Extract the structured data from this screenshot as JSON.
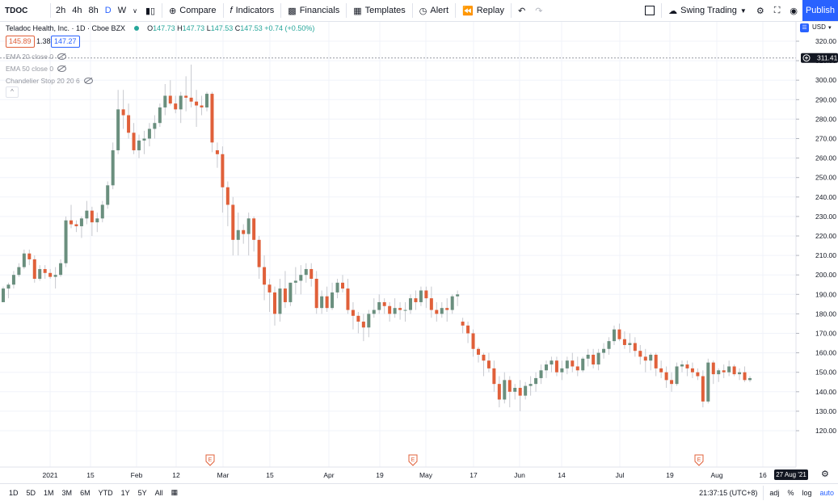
{
  "toolbar": {
    "symbol": "TDOC",
    "intervals": [
      "2h",
      "4h",
      "8h",
      "D",
      "W"
    ],
    "active_interval": "D",
    "compare": "Compare",
    "indicators": "Indicators",
    "financials": "Financials",
    "templates": "Templates",
    "alert": "Alert",
    "replay": "Replay",
    "layout_name": "Swing Trading",
    "publish": "Publish"
  },
  "legend": {
    "title": "Teladoc Health, Inc. · 1D · Cboe BZX",
    "open": "147.73",
    "high": "147.73",
    "low": "147.53",
    "close": "147.53",
    "change": "+0.74 (+0.50%)",
    "bid": "145.89",
    "spread": "1.38",
    "ask": "147.27",
    "indicators": [
      "EMA 20 close 0",
      "EMA 50 close 0",
      "Chandelier Stop 20 20 6"
    ]
  },
  "price_axis": {
    "currency": "USD",
    "crosshair_price": "311.41",
    "ticks": [
      "320.00",
      "310.00",
      "300.00",
      "290.00",
      "280.00",
      "270.00",
      "260.00",
      "250.00",
      "240.00",
      "230.00",
      "220.00",
      "210.00",
      "200.00",
      "190.00",
      "180.00",
      "170.00",
      "160.00",
      "150.00",
      "140.00",
      "130.00",
      "120.00"
    ]
  },
  "time_axis": {
    "labels": [
      "2021",
      "15",
      "Feb",
      "12",
      "Mar",
      "15",
      "Apr",
      "19",
      "May",
      "17",
      "Jun",
      "14",
      "Jul",
      "19",
      "Aug",
      "16"
    ],
    "crosshair_date": "27 Aug '21",
    "earnings_marker": "E"
  },
  "bottom": {
    "ranges": [
      "1D",
      "5D",
      "1M",
      "3M",
      "6M",
      "YTD",
      "1Y",
      "5Y",
      "All"
    ],
    "time": "21:37:15 (UTC+8)",
    "adj": "adj",
    "percent": "%",
    "log": "log",
    "auto": "auto"
  },
  "colors": {
    "up": "#6a8f7e",
    "down": "#e0603a",
    "accent": "#2962ff"
  },
  "chart_data": {
    "type": "candlestick",
    "ylim": [
      112,
      324
    ],
    "yticks": [
      320,
      310,
      300,
      290,
      280,
      270,
      260,
      250,
      240,
      230,
      220,
      210,
      200,
      190,
      180,
      170,
      160,
      150,
      140,
      130,
      120
    ],
    "crosshair_price": 311.41,
    "candles": [
      [
        186,
        194,
        186,
        193
      ],
      [
        193,
        196,
        188,
        195
      ],
      [
        195,
        202,
        193,
        200
      ],
      [
        200,
        206,
        199,
        204
      ],
      [
        204,
        213,
        203,
        211
      ],
      [
        211,
        213,
        205,
        208
      ],
      [
        208,
        210,
        196,
        198
      ],
      [
        198,
        205,
        197,
        203
      ],
      [
        203,
        205,
        198,
        201
      ],
      [
        201,
        203,
        198,
        199
      ],
      [
        199,
        204,
        193,
        200
      ],
      [
        200,
        208,
        199,
        206
      ],
      [
        206,
        230,
        204,
        228
      ],
      [
        228,
        236,
        224,
        226
      ],
      [
        226,
        228,
        222,
        225
      ],
      [
        225,
        230,
        219,
        229
      ],
      [
        229,
        238,
        226,
        233
      ],
      [
        233,
        235,
        220,
        227
      ],
      [
        227,
        232,
        222,
        229
      ],
      [
        229,
        238,
        227,
        236
      ],
      [
        236,
        248,
        234,
        246
      ],
      [
        246,
        268,
        244,
        264
      ],
      [
        264,
        295,
        262,
        285
      ],
      [
        285,
        295,
        275,
        282
      ],
      [
        282,
        288,
        270,
        273
      ],
      [
        273,
        278,
        262,
        264
      ],
      [
        264,
        272,
        260,
        269
      ],
      [
        269,
        274,
        262,
        270
      ],
      [
        270,
        278,
        266,
        275
      ],
      [
        275,
        282,
        270,
        278
      ],
      [
        278,
        288,
        276,
        286
      ],
      [
        286,
        298,
        282,
        292
      ],
      [
        292,
        300,
        287,
        288
      ],
      [
        288,
        292,
        283,
        285
      ],
      [
        285,
        294,
        278,
        292
      ],
      [
        292,
        302,
        284,
        291
      ],
      [
        291,
        308,
        286,
        289
      ],
      [
        289,
        295,
        276,
        287
      ],
      [
        287,
        292,
        282,
        286
      ],
      [
        286,
        294,
        284,
        293
      ],
      [
        293,
        294,
        263,
        268
      ],
      [
        264,
        268,
        255,
        262
      ],
      [
        262,
        266,
        232,
        245
      ],
      [
        245,
        248,
        225,
        236
      ],
      [
        236,
        240,
        210,
        218
      ],
      [
        218,
        232,
        210,
        223
      ],
      [
        223,
        226,
        216,
        221
      ],
      [
        221,
        232,
        210,
        229
      ],
      [
        229,
        230,
        212,
        218
      ],
      [
        218,
        220,
        198,
        204
      ],
      [
        204,
        210,
        187,
        195
      ],
      [
        195,
        198,
        181,
        191
      ],
      [
        191,
        194,
        174,
        180
      ],
      [
        180,
        198,
        176,
        193
      ],
      [
        193,
        202,
        183,
        186
      ],
      [
        186,
        196,
        184,
        196
      ],
      [
        196,
        204,
        190,
        197
      ],
      [
        197,
        205,
        190,
        200
      ],
      [
        200,
        206,
        196,
        203
      ],
      [
        203,
        206,
        194,
        198
      ],
      [
        198,
        202,
        180,
        183
      ],
      [
        183,
        192,
        180,
        189
      ],
      [
        189,
        194,
        181,
        183
      ],
      [
        183,
        196,
        182,
        191
      ],
      [
        191,
        198,
        188,
        196
      ],
      [
        196,
        200,
        191,
        193
      ],
      [
        193,
        198,
        180,
        182
      ],
      [
        182,
        186,
        172,
        179
      ],
      [
        179,
        181,
        170,
        176
      ],
      [
        176,
        180,
        166,
        173
      ],
      [
        173,
        182,
        168,
        180
      ],
      [
        180,
        188,
        178,
        182
      ],
      [
        182,
        190,
        180,
        186
      ],
      [
        186,
        188,
        180,
        184
      ],
      [
        184,
        186,
        176,
        180
      ],
      [
        180,
        188,
        178,
        183
      ],
      [
        183,
        186,
        177,
        182
      ],
      [
        182,
        186,
        176,
        182
      ],
      [
        182,
        190,
        180,
        188
      ],
      [
        188,
        192,
        182,
        186
      ],
      [
        186,
        194,
        184,
        192
      ],
      [
        192,
        194,
        183,
        188
      ],
      [
        188,
        194,
        178,
        182
      ],
      [
        182,
        186,
        176,
        180
      ],
      [
        180,
        186,
        178,
        183
      ],
      [
        183,
        188,
        176,
        182
      ],
      [
        182,
        190,
        180,
        189
      ],
      [
        189,
        192,
        184,
        190
      ],
      [
        176,
        178,
        170,
        174
      ],
      [
        174,
        176,
        165,
        170
      ],
      [
        170,
        172,
        158,
        162
      ],
      [
        162,
        163,
        155,
        159
      ],
      [
        159,
        160,
        148,
        156
      ],
      [
        156,
        160,
        150,
        152
      ],
      [
        152,
        156,
        140,
        144
      ],
      [
        144,
        148,
        132,
        136
      ],
      [
        136,
        150,
        134,
        146
      ],
      [
        146,
        148,
        132,
        140
      ],
      [
        140,
        144,
        136,
        142
      ],
      [
        142,
        146,
        130,
        138
      ],
      [
        138,
        145,
        136,
        143
      ],
      [
        143,
        148,
        138,
        144
      ],
      [
        144,
        150,
        140,
        147
      ],
      [
        147,
        154,
        144,
        151
      ],
      [
        151,
        156,
        147,
        154
      ],
      [
        154,
        158,
        150,
        156
      ],
      [
        156,
        158,
        148,
        150
      ],
      [
        150,
        156,
        146,
        152
      ],
      [
        152,
        158,
        149,
        156
      ],
      [
        156,
        160,
        150,
        153
      ],
      [
        153,
        158,
        148,
        151
      ],
      [
        151,
        158,
        150,
        157
      ],
      [
        157,
        162,
        153,
        159
      ],
      [
        159,
        162,
        152,
        154
      ],
      [
        154,
        162,
        151,
        160
      ],
      [
        160,
        165,
        157,
        162
      ],
      [
        162,
        168,
        159,
        166
      ],
      [
        166,
        174,
        164,
        172
      ],
      [
        172,
        175,
        166,
        167
      ],
      [
        167,
        171,
        162,
        164
      ],
      [
        164,
        170,
        160,
        165
      ],
      [
        165,
        168,
        158,
        161
      ],
      [
        161,
        164,
        154,
        158
      ],
      [
        158,
        162,
        150,
        156
      ],
      [
        156,
        160,
        151,
        159
      ],
      [
        159,
        160,
        148,
        152
      ],
      [
        152,
        156,
        147,
        150
      ],
      [
        150,
        153,
        142,
        146
      ],
      [
        146,
        150,
        140,
        144
      ],
      [
        144,
        155,
        143,
        153
      ],
      [
        153,
        156,
        150,
        154
      ],
      [
        154,
        156,
        148,
        152
      ],
      [
        152,
        155,
        147,
        150
      ],
      [
        150,
        152,
        146,
        148
      ],
      [
        148,
        151,
        132,
        135
      ],
      [
        135,
        157,
        134,
        155
      ],
      [
        155,
        156,
        144,
        149
      ],
      [
        149,
        152,
        145,
        151
      ],
      [
        151,
        154,
        147,
        150
      ],
      [
        150,
        156,
        148,
        153
      ],
      [
        153,
        154,
        148,
        149
      ],
      [
        149,
        152,
        146,
        150
      ],
      [
        150,
        153,
        145,
        146
      ],
      [
        146,
        148,
        145,
        147
      ]
    ],
    "earnings_dates": [
      "Feb 24",
      "Apr 28",
      "Jul 28"
    ],
    "xlabels": [
      "2021",
      "15",
      "Feb",
      "12",
      "Mar",
      "15",
      "Apr",
      "19",
      "May",
      "17",
      "Jun",
      "14",
      "Jul",
      "19",
      "Aug",
      "16"
    ]
  }
}
